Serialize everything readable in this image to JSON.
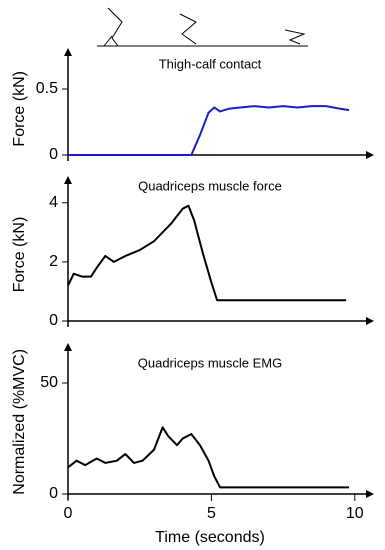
{
  "chart_data": [
    {
      "type": "line",
      "title": "Thigh-calf contact",
      "ylabel": "Force (kN)",
      "x": [
        0,
        4.3,
        4.6,
        4.9,
        5.1,
        5.3,
        5.6,
        6,
        6.5,
        7,
        7.5,
        8,
        8.5,
        9,
        9.5,
        9.8
      ],
      "series": [
        {
          "color": "#1c1cc8",
          "values": [
            0,
            0,
            0.15,
            0.32,
            0.36,
            0.33,
            0.35,
            0.36,
            0.37,
            0.36,
            0.37,
            0.36,
            0.37,
            0.37,
            0.35,
            0.34
          ]
        }
      ],
      "xlim": [
        0,
        10.6
      ],
      "ylim": [
        0,
        0.7
      ],
      "yticks": [
        0,
        0.5
      ]
    },
    {
      "type": "line",
      "title": "Quadriceps muscle force",
      "ylabel": "Force (kN)",
      "x": [
        0,
        0.2,
        0.5,
        0.8,
        1,
        1.3,
        1.6,
        2,
        2.5,
        3,
        3.3,
        3.6,
        4,
        4.2,
        4.4,
        4.7,
        5,
        5.2,
        5.5,
        7,
        9.7
      ],
      "series": [
        {
          "color": "#000000",
          "values": [
            1.2,
            1.6,
            1.5,
            1.5,
            1.8,
            2.2,
            2.0,
            2.2,
            2.4,
            2.7,
            3.0,
            3.3,
            3.8,
            3.9,
            3.4,
            2.3,
            1.3,
            0.7,
            0.7,
            0.7,
            0.7
          ]
        }
      ],
      "xlim": [
        0,
        10.6
      ],
      "ylim": [
        0,
        4.5
      ],
      "yticks": [
        0,
        2,
        4
      ]
    },
    {
      "type": "line",
      "title": "Quadriceps muscle EMG",
      "ylabel": "Normalized (%MVC)",
      "xlabel": "Time (seconds)",
      "x": [
        0,
        0.3,
        0.6,
        1,
        1.3,
        1.7,
        2,
        2.3,
        2.6,
        3,
        3.3,
        3.5,
        3.8,
        4,
        4.3,
        4.6,
        4.9,
        5.1,
        5.3,
        5.6,
        7,
        9.8
      ],
      "series": [
        {
          "color": "#000000",
          "values": [
            12,
            15,
            13,
            16,
            14,
            15,
            18,
            14,
            15,
            20,
            30,
            26,
            22,
            25,
            27,
            22,
            15,
            8,
            3,
            3,
            3,
            3
          ]
        }
      ],
      "xlim": [
        0,
        10.6
      ],
      "xticks": [
        0,
        5,
        10
      ],
      "ylim": [
        0,
        65
      ],
      "yticks": [
        0,
        50
      ]
    }
  ]
}
